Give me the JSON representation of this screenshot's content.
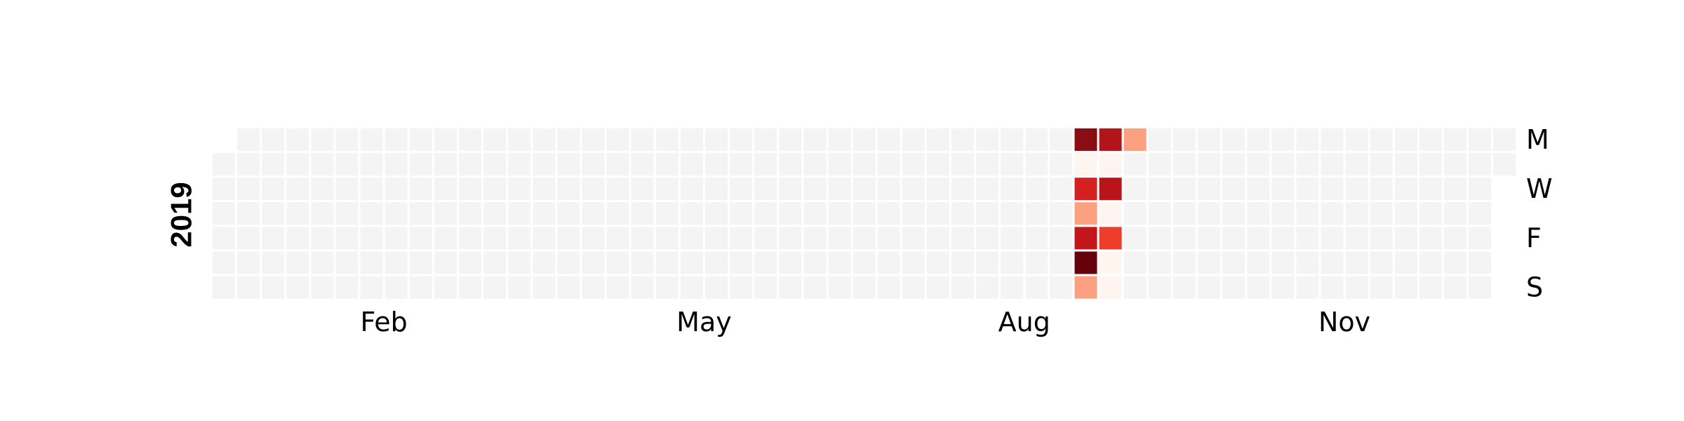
{
  "chart_data": {
    "type": "heatmap",
    "year_label": "2019",
    "month_labels": [
      "Feb",
      "May",
      "Aug",
      "Nov"
    ],
    "month_label_weeks": [
      6.5,
      19.5,
      32.5,
      45.5
    ],
    "weekday_labels": [
      "M",
      "W",
      "F",
      "S"
    ],
    "weekday_label_rows": [
      0,
      2,
      4,
      6
    ],
    "n_weeks": 53,
    "empty_color": "#f4f4f4",
    "active": [
      {
        "week": 35,
        "day": 0,
        "color": "#8b0d14"
      },
      {
        "week": 35,
        "day": 1,
        "color": "#fff5f0"
      },
      {
        "week": 35,
        "day": 2,
        "color": "#d42020"
      },
      {
        "week": 35,
        "day": 3,
        "color": "#fca082"
      },
      {
        "week": 35,
        "day": 4,
        "color": "#c2161b"
      },
      {
        "week": 35,
        "day": 5,
        "color": "#67000d"
      },
      {
        "week": 35,
        "day": 6,
        "color": "#fca082"
      },
      {
        "week": 36,
        "day": 0,
        "color": "#b3141a"
      },
      {
        "week": 36,
        "day": 1,
        "color": "#fff5f0"
      },
      {
        "week": 36,
        "day": 2,
        "color": "#b81419"
      },
      {
        "week": 36,
        "day": 3,
        "color": "#fff5f0"
      },
      {
        "week": 36,
        "day": 4,
        "color": "#ef3c2d"
      },
      {
        "week": 36,
        "day": 5,
        "color": "#fff5f0"
      },
      {
        "week": 36,
        "day": 6,
        "color": "#fff5f0"
      },
      {
        "week": 37,
        "day": 0,
        "color": "#fca082"
      }
    ]
  }
}
